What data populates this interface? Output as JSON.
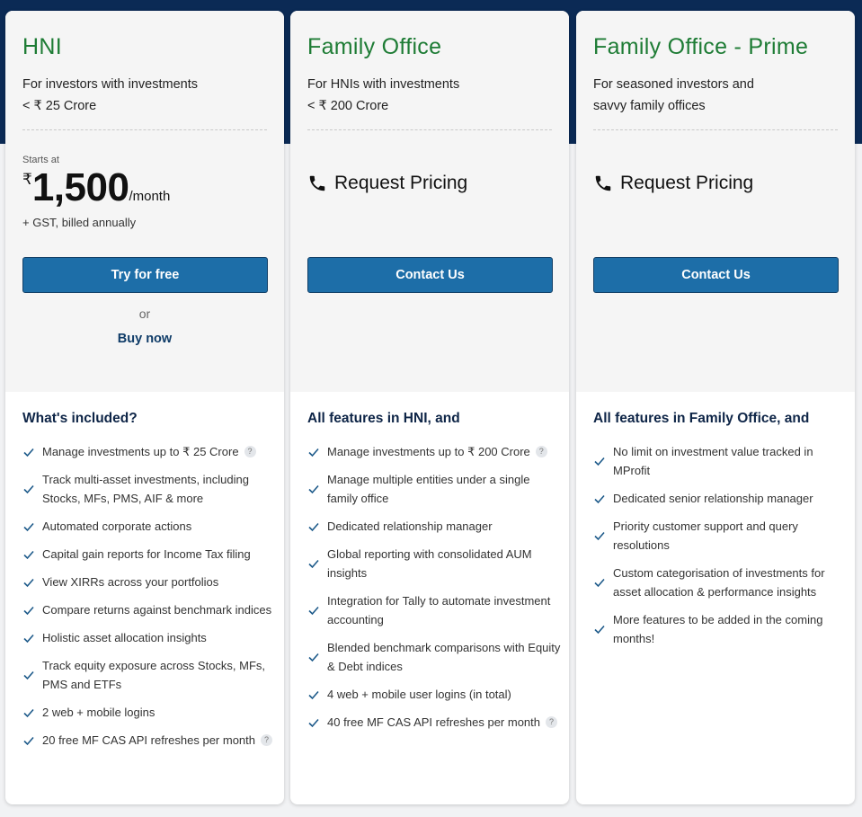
{
  "plans": [
    {
      "name": "HNI",
      "description": [
        "For investors with investments",
        "< ₹ 25 Crore"
      ],
      "starts_at": "Starts at",
      "currency_symbol": "₹",
      "price": "1,500",
      "period": "/month",
      "gst_note": "+ GST, billed annually",
      "button_label": "Try for free",
      "or_text": "or",
      "buy_now_label": "Buy now",
      "features_heading": "What's included?",
      "features": [
        {
          "text": "Manage investments up to ₹ 25 Crore",
          "help": true
        },
        {
          "text": "Track multi-asset investments, including Stocks, MFs, PMS, AIF & more",
          "help": false
        },
        {
          "text": "Automated corporate actions",
          "help": false
        },
        {
          "text": "Capital gain reports for Income Tax filing",
          "help": false
        },
        {
          "text": "View XIRRs across your portfolios",
          "help": false
        },
        {
          "text": "Compare returns against benchmark indices",
          "help": false
        },
        {
          "text": "Holistic asset allocation insights",
          "help": false
        },
        {
          "text": "Track equity exposure across Stocks, MFs, PMS and ETFs",
          "help": false
        },
        {
          "text": "2 web + mobile logins",
          "help": false
        },
        {
          "text": "20 free MF CAS API refreshes per month",
          "help": true
        }
      ]
    },
    {
      "name": "Family Office",
      "description": [
        "For HNIs with investments",
        "< ₹ 200 Crore"
      ],
      "pricing_label": "Request Pricing",
      "button_label": "Contact Us",
      "features_heading": "All features in HNI, and",
      "features": [
        {
          "text": "Manage investments up to ₹ 200 Crore",
          "help": true
        },
        {
          "text": "Manage multiple entities under a single family office",
          "help": false
        },
        {
          "text": "Dedicated relationship manager",
          "help": false
        },
        {
          "text": "Global reporting with consolidated AUM insights",
          "help": false
        },
        {
          "text": "Integration for Tally to automate investment accounting",
          "help": false
        },
        {
          "text": "Blended benchmark comparisons with Equity & Debt indices",
          "help": false
        },
        {
          "text": "4 web + mobile user logins (in total)",
          "help": false
        },
        {
          "text": "40 free MF CAS API refreshes per month",
          "help": true
        }
      ]
    },
    {
      "name": "Family Office - Prime",
      "description": [
        "For seasoned investors and",
        "savvy family offices"
      ],
      "pricing_label": "Request Pricing",
      "button_label": "Contact Us",
      "features_heading": "All features in Family Office, and",
      "features": [
        {
          "text": "No limit on investment value tracked in MProfit",
          "help": false
        },
        {
          "text": "Dedicated senior relationship manager",
          "help": false
        },
        {
          "text": "Priority customer support and query resolutions",
          "help": false
        },
        {
          "text": "Custom categorisation of investments for asset allocation & performance insights",
          "help": false
        },
        {
          "text": "More features to be added in the coming months!",
          "help": false
        }
      ]
    }
  ],
  "help_glyph": "?",
  "icons": {
    "check": "check-icon",
    "phone": "phone-icon",
    "help": "help-icon"
  },
  "colors": {
    "plan_name": "#1e7c35",
    "button": "#1d6ea8",
    "header_bg": "#0b2a55",
    "check": "#1d5a8a"
  }
}
